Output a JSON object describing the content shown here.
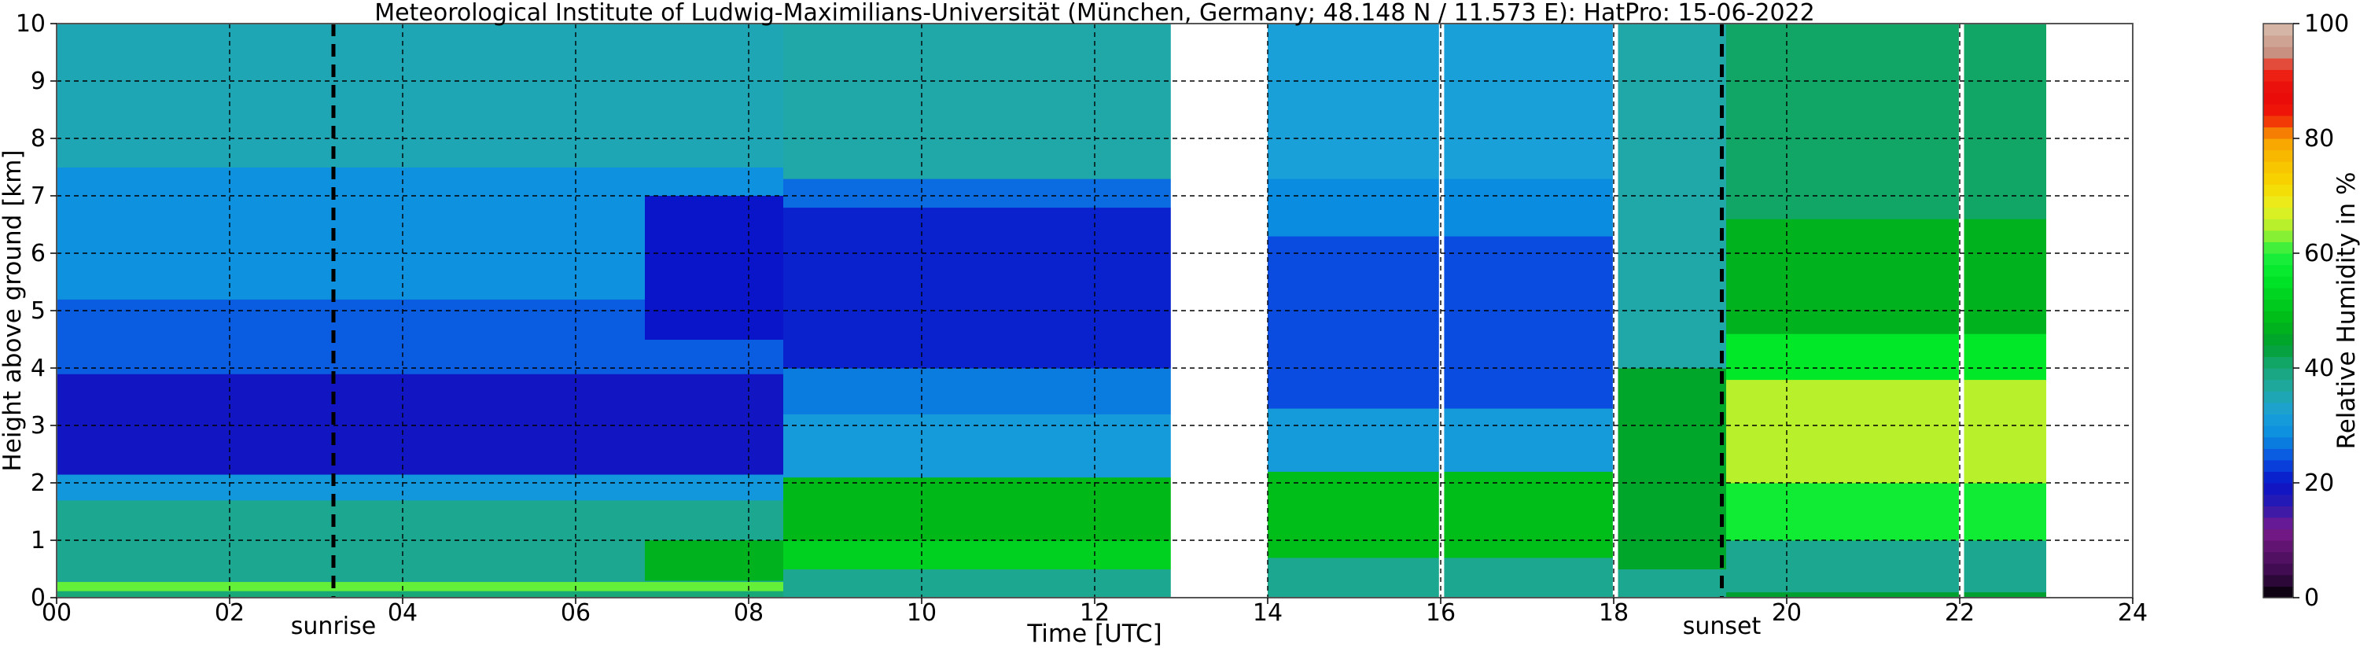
{
  "chart_data": {
    "type": "heatmap",
    "title": "Meteorological Institute of Ludwig-Maximilians-Universität (München, Germany; 48.148 N / 11.573 E):    HatPro: 15-06-2022",
    "xlabel": "Time [UTC]",
    "ylabel": "Height above ground [km]",
    "colorbar_label": "Relative Humidity in %",
    "xlim": [
      0,
      24
    ],
    "ylim": [
      0,
      10
    ],
    "xticks": [
      {
        "value": 0,
        "label": "00"
      },
      {
        "value": 2,
        "label": "02"
      },
      {
        "value": 4,
        "label": "04"
      },
      {
        "value": 6,
        "label": "06"
      },
      {
        "value": 8,
        "label": "08"
      },
      {
        "value": 10,
        "label": "10"
      },
      {
        "value": 12,
        "label": "12"
      },
      {
        "value": 14,
        "label": "14"
      },
      {
        "value": 16,
        "label": "16"
      },
      {
        "value": 18,
        "label": "18"
      },
      {
        "value": 20,
        "label": "20"
      },
      {
        "value": 22,
        "label": "22"
      },
      {
        "value": 24,
        "label": "24"
      }
    ],
    "yticks": [
      0,
      1,
      2,
      3,
      4,
      5,
      6,
      7,
      8,
      9,
      10
    ],
    "colorbar_ticks": [
      0,
      20,
      40,
      60,
      80,
      100
    ],
    "colorbar_range": [
      0,
      100
    ],
    "grid": true,
    "grid_style": "dashed",
    "colormap": [
      {
        "value": 0,
        "color": "#000000"
      },
      {
        "value": 4,
        "color": "#3a0a4a"
      },
      {
        "value": 12,
        "color": "#7a1a8c"
      },
      {
        "value": 16,
        "color": "#2a1ab0"
      },
      {
        "value": 20,
        "color": "#0a14c8"
      },
      {
        "value": 24,
        "color": "#0a4ce0"
      },
      {
        "value": 28,
        "color": "#0a8ce0"
      },
      {
        "value": 32,
        "color": "#1aa0d8"
      },
      {
        "value": 36,
        "color": "#20a8a8"
      },
      {
        "value": 40,
        "color": "#18a878"
      },
      {
        "value": 44,
        "color": "#00a030"
      },
      {
        "value": 48,
        "color": "#00b818"
      },
      {
        "value": 52,
        "color": "#00d020"
      },
      {
        "value": 56,
        "color": "#00e828"
      },
      {
        "value": 60,
        "color": "#20f040"
      },
      {
        "value": 64,
        "color": "#a8f030"
      },
      {
        "value": 68,
        "color": "#e8f020"
      },
      {
        "value": 72,
        "color": "#f8d800"
      },
      {
        "value": 76,
        "color": "#f8c000"
      },
      {
        "value": 80,
        "color": "#f8a000"
      },
      {
        "value": 84,
        "color": "#f01808"
      },
      {
        "value": 88,
        "color": "#e80808"
      },
      {
        "value": 92,
        "color": "#f02818"
      },
      {
        "value": 95,
        "color": "#c89080"
      },
      {
        "value": 100,
        "color": "#d8c0b0"
      }
    ],
    "data_gaps": [
      {
        "start": 12.88,
        "end": 14.0
      },
      {
        "start": 15.98,
        "end": 16.04
      },
      {
        "start": 17.99,
        "end": 18.05
      },
      {
        "start": 21.99,
        "end": 22.05
      },
      {
        "start": 23.0,
        "end": 24.0
      }
    ],
    "vertical_markers": [
      {
        "time": 3.2,
        "label": "sunrise"
      },
      {
        "time": 19.25,
        "label": "sunset"
      }
    ],
    "humidity_field": [
      {
        "start": 0.0,
        "end": 8.4,
        "levels": [
          {
            "from": 0.0,
            "to": 0.12,
            "rh": 40
          },
          {
            "from": 0.12,
            "to": 0.28,
            "rh": 62
          },
          {
            "from": 0.28,
            "to": 1.7,
            "rh": 38
          },
          {
            "from": 1.7,
            "to": 2.15,
            "rh": 30
          },
          {
            "from": 2.15,
            "to": 3.9,
            "rh": 19
          },
          {
            "from": 3.9,
            "to": 5.2,
            "rh": 25
          },
          {
            "from": 5.2,
            "to": 7.5,
            "rh": 29
          },
          {
            "from": 7.5,
            "to": 10.0,
            "rh": 35
          }
        ]
      },
      {
        "start": 6.8,
        "end": 8.4,
        "levels": [
          {
            "from": 0.3,
            "to": 1.0,
            "rh": 47
          },
          {
            "from": 4.5,
            "to": 7.0,
            "rh": 20
          }
        ]
      },
      {
        "start": 8.4,
        "end": 12.88,
        "levels": [
          {
            "from": 0.0,
            "to": 0.5,
            "rh": 38
          },
          {
            "from": 0.5,
            "to": 1.0,
            "rh": 52
          },
          {
            "from": 1.0,
            "to": 2.1,
            "rh": 48
          },
          {
            "from": 2.1,
            "to": 3.2,
            "rh": 31
          },
          {
            "from": 3.2,
            "to": 4.0,
            "rh": 27
          },
          {
            "from": 4.0,
            "to": 6.8,
            "rh": 21
          },
          {
            "from": 6.8,
            "to": 7.3,
            "rh": 26
          },
          {
            "from": 7.3,
            "to": 10.0,
            "rh": 36
          }
        ]
      },
      {
        "start": 14.0,
        "end": 18.0,
        "levels": [
          {
            "from": 0.0,
            "to": 0.7,
            "rh": 38
          },
          {
            "from": 0.7,
            "to": 2.2,
            "rh": 49
          },
          {
            "from": 2.2,
            "to": 3.3,
            "rh": 31
          },
          {
            "from": 3.3,
            "to": 6.3,
            "rh": 24
          },
          {
            "from": 6.3,
            "to": 7.3,
            "rh": 28
          },
          {
            "from": 7.3,
            "to": 10.0,
            "rh": 32
          }
        ]
      },
      {
        "start": 18.05,
        "end": 19.3,
        "levels": [
          {
            "from": 0.0,
            "to": 0.5,
            "rh": 38
          },
          {
            "from": 0.5,
            "to": 4.0,
            "rh": 45
          },
          {
            "from": 4.0,
            "to": 10.0,
            "rh": 36
          }
        ]
      },
      {
        "start": 19.3,
        "end": 23.0,
        "levels": [
          {
            "from": 0.0,
            "to": 0.1,
            "rh": 44
          },
          {
            "from": 0.1,
            "to": 1.0,
            "rh": 38
          },
          {
            "from": 1.0,
            "to": 2.0,
            "rh": 58
          },
          {
            "from": 2.0,
            "to": 3.8,
            "rh": 65
          },
          {
            "from": 3.8,
            "to": 4.6,
            "rh": 56
          },
          {
            "from": 4.6,
            "to": 6.6,
            "rh": 47
          },
          {
            "from": 6.6,
            "to": 10.0,
            "rh": 41
          }
        ]
      }
    ]
  }
}
